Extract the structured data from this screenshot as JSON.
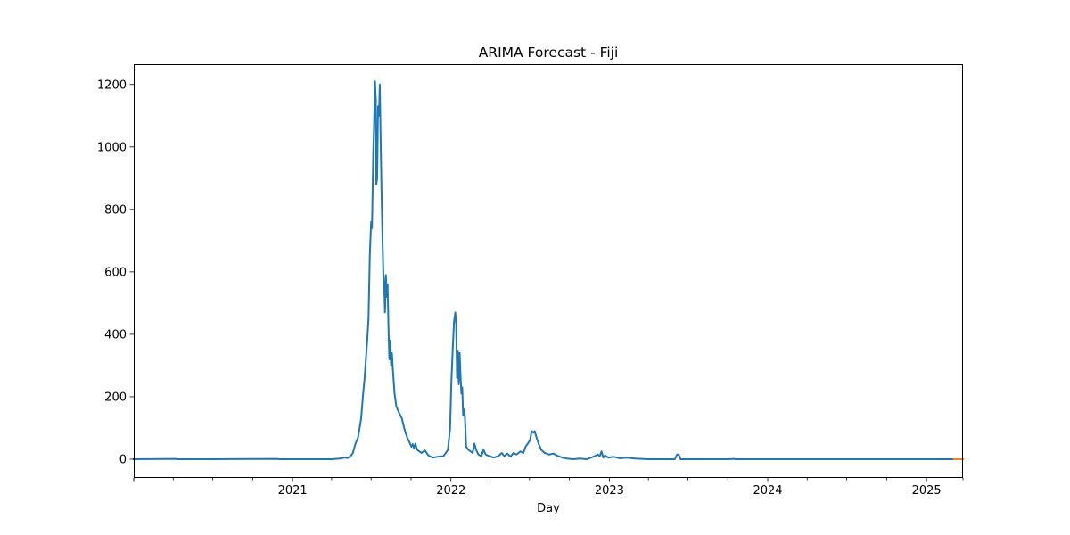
{
  "chart_data": {
    "type": "line",
    "title": "ARIMA Forecast - Fiji",
    "xlabel": "Day",
    "ylabel": "",
    "x_ticks": [
      "2021",
      "2022",
      "2023",
      "2024",
      "2025"
    ],
    "y_ticks": [
      "0",
      "200",
      "400",
      "600",
      "800",
      "1000",
      "1200"
    ],
    "xlim": [
      "2020-01-01",
      "2025-03-26"
    ],
    "ylim": [
      -60,
      1265
    ],
    "grid": false,
    "legend": "none",
    "series": [
      {
        "color": "#1f77b4",
        "points": [
          [
            "2020-01-01",
            0
          ],
          [
            "2020-04-06",
            1
          ],
          [
            "2020-04-12",
            0
          ],
          [
            "2020-07-01",
            0
          ],
          [
            "2020-11-26",
            1
          ],
          [
            "2020-12-01",
            0
          ],
          [
            "2021-04-01",
            0
          ],
          [
            "2021-04-20",
            2
          ],
          [
            "2021-04-30",
            5
          ],
          [
            "2021-05-08",
            4
          ],
          [
            "2021-05-15",
            10
          ],
          [
            "2021-05-20",
            20
          ],
          [
            "2021-05-26",
            50
          ],
          [
            "2021-06-01",
            70
          ],
          [
            "2021-06-08",
            130
          ],
          [
            "2021-06-12",
            200
          ],
          [
            "2021-06-16",
            260
          ],
          [
            "2021-06-18",
            300
          ],
          [
            "2021-06-22",
            380
          ],
          [
            "2021-06-25",
            450
          ],
          [
            "2021-06-28",
            650
          ],
          [
            "2021-07-01",
            760
          ],
          [
            "2021-07-03",
            740
          ],
          [
            "2021-07-06",
            980
          ],
          [
            "2021-07-08",
            1080
          ],
          [
            "2021-07-10",
            1210
          ],
          [
            "2021-07-12",
            1150
          ],
          [
            "2021-07-13",
            880
          ],
          [
            "2021-07-15",
            900
          ],
          [
            "2021-07-17",
            1130
          ],
          [
            "2021-07-19",
            1100
          ],
          [
            "2021-07-21",
            1200
          ],
          [
            "2021-07-23",
            1020
          ],
          [
            "2021-07-25",
            860
          ],
          [
            "2021-07-27",
            720
          ],
          [
            "2021-07-29",
            600
          ],
          [
            "2021-07-31",
            560
          ],
          [
            "2021-08-02",
            470
          ],
          [
            "2021-08-04",
            590
          ],
          [
            "2021-08-06",
            520
          ],
          [
            "2021-08-08",
            560
          ],
          [
            "2021-08-10",
            420
          ],
          [
            "2021-08-12",
            320
          ],
          [
            "2021-08-14",
            380
          ],
          [
            "2021-08-16",
            300
          ],
          [
            "2021-08-18",
            340
          ],
          [
            "2021-08-20",
            290
          ],
          [
            "2021-08-24",
            210
          ],
          [
            "2021-08-28",
            170
          ],
          [
            "2021-09-03",
            150
          ],
          [
            "2021-09-10",
            130
          ],
          [
            "2021-09-16",
            95
          ],
          [
            "2021-09-22",
            70
          ],
          [
            "2021-09-27",
            55
          ],
          [
            "2021-10-02",
            40
          ],
          [
            "2021-10-05",
            48
          ],
          [
            "2021-10-08",
            35
          ],
          [
            "2021-10-11",
            50
          ],
          [
            "2021-10-15",
            30
          ],
          [
            "2021-10-25",
            20
          ],
          [
            "2021-11-02",
            28
          ],
          [
            "2021-11-10",
            12
          ],
          [
            "2021-11-20",
            5
          ],
          [
            "2021-12-01",
            8
          ],
          [
            "2021-12-15",
            10
          ],
          [
            "2021-12-25",
            30
          ],
          [
            "2021-12-30",
            100
          ],
          [
            "2022-01-02",
            250
          ],
          [
            "2022-01-05",
            350
          ],
          [
            "2022-01-08",
            440
          ],
          [
            "2022-01-11",
            470
          ],
          [
            "2022-01-13",
            430
          ],
          [
            "2022-01-15",
            260
          ],
          [
            "2022-01-17",
            345
          ],
          [
            "2022-01-19",
            240
          ],
          [
            "2022-01-21",
            340
          ],
          [
            "2022-01-23",
            270
          ],
          [
            "2022-01-25",
            210
          ],
          [
            "2022-01-27",
            230
          ],
          [
            "2022-01-29",
            140
          ],
          [
            "2022-01-31",
            160
          ],
          [
            "2022-02-02",
            140
          ],
          [
            "2022-02-05",
            40
          ],
          [
            "2022-02-10",
            30
          ],
          [
            "2022-02-15",
            25
          ],
          [
            "2022-02-20",
            20
          ],
          [
            "2022-02-24",
            50
          ],
          [
            "2022-02-28",
            30
          ],
          [
            "2022-03-05",
            15
          ],
          [
            "2022-03-12",
            10
          ],
          [
            "2022-03-17",
            30
          ],
          [
            "2022-03-22",
            15
          ],
          [
            "2022-03-30",
            10
          ],
          [
            "2022-04-10",
            5
          ],
          [
            "2022-04-20",
            10
          ],
          [
            "2022-04-28",
            20
          ],
          [
            "2022-05-04",
            10
          ],
          [
            "2022-05-11",
            18
          ],
          [
            "2022-05-18",
            8
          ],
          [
            "2022-05-25",
            20
          ],
          [
            "2022-06-01",
            15
          ],
          [
            "2022-06-10",
            25
          ],
          [
            "2022-06-17",
            20
          ],
          [
            "2022-06-22",
            40
          ],
          [
            "2022-06-27",
            50
          ],
          [
            "2022-07-02",
            60
          ],
          [
            "2022-07-06",
            90
          ],
          [
            "2022-07-10",
            85
          ],
          [
            "2022-07-13",
            90
          ],
          [
            "2022-07-17",
            70
          ],
          [
            "2022-07-22",
            50
          ],
          [
            "2022-07-28",
            30
          ],
          [
            "2022-08-05",
            20
          ],
          [
            "2022-08-15",
            15
          ],
          [
            "2022-08-25",
            18
          ],
          [
            "2022-09-05",
            10
          ],
          [
            "2022-09-15",
            5
          ],
          [
            "2022-09-25",
            2
          ],
          [
            "2022-10-10",
            0
          ],
          [
            "2022-10-25",
            2
          ],
          [
            "2022-11-10",
            0
          ],
          [
            "2022-11-20",
            5
          ],
          [
            "2022-11-28",
            10
          ],
          [
            "2022-12-05",
            15
          ],
          [
            "2022-12-10",
            10
          ],
          [
            "2022-12-14",
            25
          ],
          [
            "2022-12-18",
            5
          ],
          [
            "2022-12-22",
            12
          ],
          [
            "2022-12-30",
            5
          ],
          [
            "2023-01-10",
            8
          ],
          [
            "2023-01-25",
            3
          ],
          [
            "2023-02-10",
            5
          ],
          [
            "2023-03-01",
            2
          ],
          [
            "2023-04-01",
            0
          ],
          [
            "2023-06-01",
            0
          ],
          [
            "2023-06-06",
            15
          ],
          [
            "2023-06-10",
            15
          ],
          [
            "2023-06-14",
            0
          ],
          [
            "2023-10-01",
            0
          ],
          [
            "2023-10-15",
            1
          ],
          [
            "2023-10-20",
            0
          ],
          [
            "2024-01-01",
            0
          ],
          [
            "2025-03-05",
            0
          ]
        ]
      },
      {
        "color": "#ff7f0e",
        "points": [
          [
            "2025-03-05",
            0
          ],
          [
            "2025-03-26",
            0
          ]
        ]
      }
    ]
  }
}
